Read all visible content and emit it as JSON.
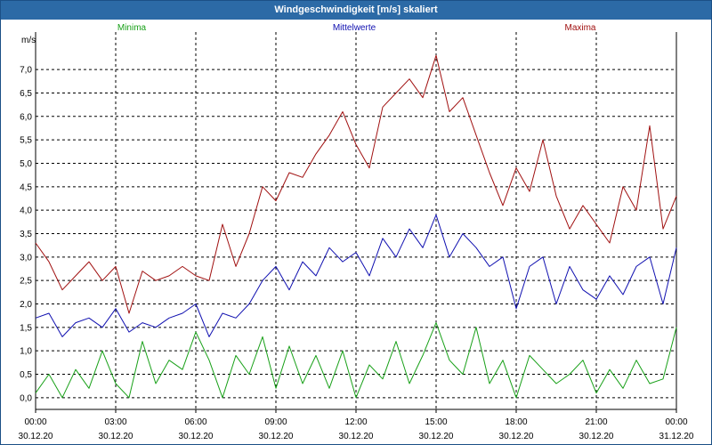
{
  "window": {
    "title": "Windgeschwindigkeit [m/s] skaliert"
  },
  "chart_data": {
    "type": "line",
    "title": "Windgeschwindigkeit [m/s] skaliert",
    "ylabel": "m/s",
    "xlabel": "",
    "ylim": [
      -0.25,
      7.8
    ],
    "y_ticks": [
      "0,0",
      "0,5",
      "1,0",
      "1,5",
      "2,0",
      "2,5",
      "3,0",
      "3,5",
      "4,0",
      "4,5",
      "5,0",
      "5,5",
      "6,0",
      "6,5",
      "7,0"
    ],
    "x_ticks": [
      {
        "time": "00:00",
        "date": "30.12.20"
      },
      {
        "time": "03:00",
        "date": "30.12.20"
      },
      {
        "time": "06:00",
        "date": "30.12.20"
      },
      {
        "time": "09:00",
        "date": "30.12.20"
      },
      {
        "time": "12:00",
        "date": "30.12.20"
      },
      {
        "time": "15:00",
        "date": "30.12.20"
      },
      {
        "time": "18:00",
        "date": "30.12.20"
      },
      {
        "time": "21:00",
        "date": "30.12.20"
      },
      {
        "time": "00:00",
        "date": "31.12.20"
      }
    ],
    "x_unit": "hours since 30.12.20 00:00",
    "xlim": [
      0,
      24
    ],
    "grid": true,
    "legend_placement": "top",
    "series": [
      {
        "name": "Minima",
        "color": "#18a018",
        "x": [
          0,
          0.5,
          1,
          1.5,
          2,
          2.5,
          3,
          3.5,
          4,
          4.5,
          5,
          5.5,
          6,
          6.5,
          7,
          7.5,
          8,
          8.5,
          9,
          9.5,
          10,
          10.5,
          11,
          11.5,
          12,
          12.5,
          13,
          13.5,
          14,
          14.5,
          15,
          15.5,
          16,
          16.5,
          17,
          17.5,
          18,
          18.5,
          19,
          19.5,
          20,
          20.5,
          21,
          21.5,
          22,
          22.5,
          23,
          23.5,
          24
        ],
        "values": [
          0.1,
          0.5,
          0.0,
          0.6,
          0.2,
          1.0,
          0.3,
          0.0,
          1.2,
          0.3,
          0.8,
          0.6,
          1.4,
          0.8,
          0.0,
          0.9,
          0.5,
          1.3,
          0.2,
          1.1,
          0.3,
          0.9,
          0.2,
          1.0,
          0.0,
          0.7,
          0.4,
          1.2,
          0.3,
          0.9,
          1.6,
          0.8,
          0.5,
          1.5,
          0.3,
          0.8,
          0.0,
          0.9,
          0.6,
          0.3,
          0.5,
          0.8,
          0.1,
          0.6,
          0.2,
          0.8,
          0.3,
          0.4,
          1.5
        ]
      },
      {
        "name": "Mittelwerte",
        "color": "#1010b0",
        "x": [
          0,
          0.5,
          1,
          1.5,
          2,
          2.5,
          3,
          3.5,
          4,
          4.5,
          5,
          5.5,
          6,
          6.5,
          7,
          7.5,
          8,
          8.5,
          9,
          9.5,
          10,
          10.5,
          11,
          11.5,
          12,
          12.5,
          13,
          13.5,
          14,
          14.5,
          15,
          15.5,
          16,
          16.5,
          17,
          17.5,
          18,
          18.5,
          19,
          19.5,
          20,
          20.5,
          21,
          21.5,
          22,
          22.5,
          23,
          23.5,
          24
        ],
        "values": [
          1.7,
          1.8,
          1.3,
          1.6,
          1.7,
          1.5,
          1.9,
          1.4,
          1.6,
          1.5,
          1.7,
          1.8,
          2.0,
          1.3,
          1.8,
          1.7,
          2.0,
          2.5,
          2.8,
          2.3,
          2.9,
          2.6,
          3.2,
          2.9,
          3.1,
          2.6,
          3.4,
          3.0,
          3.6,
          3.2,
          3.9,
          3.0,
          3.5,
          3.2,
          2.8,
          3.0,
          1.9,
          2.8,
          3.0,
          2.0,
          2.8,
          2.3,
          2.1,
          2.6,
          2.2,
          2.8,
          3.0,
          2.0,
          3.2
        ]
      },
      {
        "name": "Maxima",
        "color": "#a01010",
        "x": [
          0,
          0.5,
          1,
          1.5,
          2,
          2.5,
          3,
          3.5,
          4,
          4.5,
          5,
          5.5,
          6,
          6.5,
          7,
          7.5,
          8,
          8.5,
          9,
          9.5,
          10,
          10.5,
          11,
          11.5,
          12,
          12.5,
          13,
          13.5,
          14,
          14.5,
          15,
          15.5,
          16,
          16.5,
          17,
          17.5,
          18,
          18.5,
          19,
          19.5,
          20,
          20.5,
          21,
          21.5,
          22,
          22.5,
          23,
          23.5,
          24
        ],
        "values": [
          3.3,
          2.9,
          2.3,
          2.6,
          2.9,
          2.5,
          2.8,
          1.8,
          2.7,
          2.5,
          2.6,
          2.8,
          2.6,
          2.5,
          3.7,
          2.8,
          3.5,
          4.5,
          4.2,
          4.8,
          4.7,
          5.2,
          5.6,
          6.1,
          5.4,
          4.9,
          6.2,
          6.5,
          6.8,
          6.4,
          7.3,
          6.1,
          6.4,
          5.6,
          4.8,
          4.1,
          4.9,
          4.4,
          5.5,
          4.3,
          3.6,
          4.1,
          3.7,
          3.3,
          4.5,
          4.0,
          5.8,
          3.6,
          4.3
        ]
      }
    ]
  }
}
